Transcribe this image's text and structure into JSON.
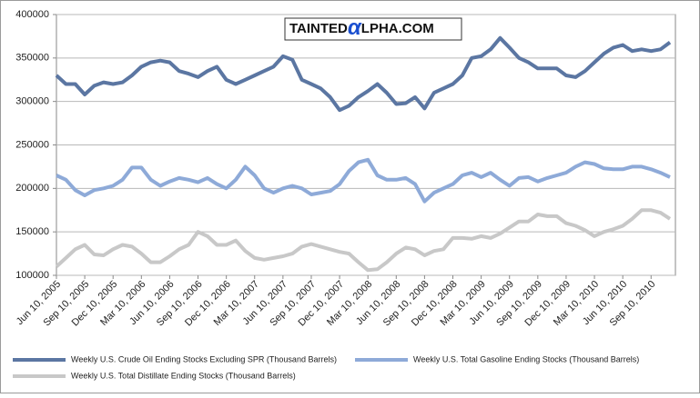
{
  "chart_data": {
    "type": "line",
    "watermark": [
      "TAINTED",
      "α",
      "LPHA.COM"
    ],
    "categories": [
      "Jun 10, 2005",
      null,
      null,
      "Sep 10, 2005",
      null,
      null,
      "Dec 10, 2005",
      null,
      null,
      "Mar 10, 2006",
      null,
      null,
      "Jun 10, 2006",
      null,
      null,
      "Sep 10, 2006",
      null,
      null,
      "Dec 10, 2006",
      null,
      null,
      "Mar 10, 2007",
      null,
      null,
      "Jun 10, 2007",
      null,
      null,
      "Sep 10, 2007",
      null,
      null,
      "Dec 10, 2007",
      null,
      null,
      "Mar 10, 2008",
      null,
      null,
      "Jun 10, 2008",
      null,
      null,
      "Sep 10, 2008",
      null,
      null,
      "Dec 10, 2008",
      null,
      null,
      "Mar 10, 2009",
      null,
      null,
      "Jun 10, 2009",
      null,
      null,
      "Sep 10, 2009",
      null,
      null,
      "Dec 10, 2009",
      null,
      null,
      "Mar 10, 2010",
      null,
      null,
      "Jun 10, 2010",
      null,
      null,
      "Sep 10, 2010",
      null,
      null
    ],
    "series": [
      {
        "name": "Weekly U.S. Crude Oil Ending Stocks Excluding SPR (Thousand Barrels)",
        "color": "#5b76a2",
        "values": [
          330000,
          320000,
          320000,
          308000,
          318000,
          322000,
          320000,
          322000,
          330000,
          340000,
          345000,
          347000,
          345000,
          335000,
          332000,
          328000,
          335000,
          340000,
          325000,
          320000,
          325000,
          330000,
          335000,
          340000,
          352000,
          348000,
          325000,
          320000,
          315000,
          305000,
          290000,
          295000,
          305000,
          312000,
          320000,
          310000,
          297000,
          298000,
          305000,
          292000,
          310000,
          315000,
          320000,
          330000,
          350000,
          352000,
          360000,
          373000,
          362000,
          350000,
          345000,
          338000,
          338000,
          338000,
          330000,
          328000,
          335000,
          345000,
          355000,
          362000,
          365000,
          358000,
          360000,
          358000,
          360000,
          368000
        ]
      },
      {
        "name": "Weekly U.S. Total Gasoline Ending Stocks (Thousand Barrels)",
        "color": "#8eaad8",
        "values": [
          215000,
          210000,
          198000,
          192000,
          198000,
          200000,
          203000,
          210000,
          224000,
          224000,
          210000,
          203000,
          208000,
          212000,
          210000,
          207000,
          212000,
          205000,
          200000,
          210000,
          225000,
          215000,
          200000,
          195000,
          200000,
          203000,
          200000,
          193000,
          195000,
          197000,
          205000,
          220000,
          230000,
          233000,
          215000,
          210000,
          210000,
          212000,
          205000,
          185000,
          195000,
          200000,
          205000,
          215000,
          218000,
          213000,
          218000,
          210000,
          203000,
          212000,
          213000,
          208000,
          212000,
          215000,
          218000,
          225000,
          230000,
          228000,
          223000,
          222000,
          222000,
          225000,
          225000,
          222000,
          218000,
          213000
        ]
      },
      {
        "name": "Weekly U.S. Total Distillate Ending Stocks (Thousand Barrels)",
        "color": "#c8c8c8",
        "values": [
          110000,
          120000,
          130000,
          135000,
          124000,
          123000,
          130000,
          135000,
          133000,
          125000,
          115000,
          115000,
          122000,
          130000,
          135000,
          150000,
          145000,
          135000,
          135000,
          140000,
          128000,
          120000,
          118000,
          120000,
          122000,
          125000,
          133000,
          136000,
          133000,
          130000,
          127000,
          125000,
          115000,
          106000,
          107000,
          115000,
          125000,
          132000,
          130000,
          123000,
          128000,
          130000,
          143000,
          143000,
          142000,
          145000,
          143000,
          148000,
          155000,
          162000,
          162000,
          170000,
          168000,
          168000,
          160000,
          157000,
          152000,
          145000,
          150000,
          153000,
          157000,
          165000,
          175000,
          175000,
          172000,
          165000
        ]
      }
    ],
    "ylim": [
      100000,
      400000
    ],
    "yticks": [
      100000,
      150000,
      200000,
      250000,
      300000,
      350000,
      400000
    ],
    "grid": true
  }
}
